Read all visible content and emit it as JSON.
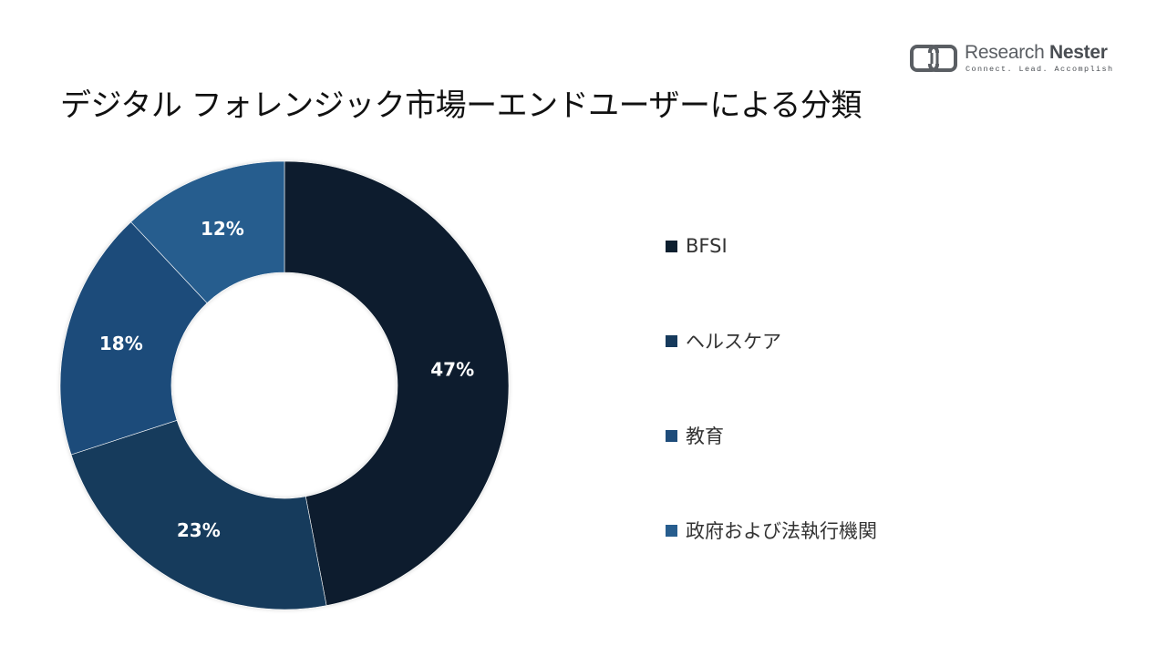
{
  "header": {
    "title": "デジタル フォレンジック市場ーエンドユーザーによる分類"
  },
  "logo": {
    "name_regular": "Research ",
    "name_bold": "Nester",
    "tagline": "Connect. Lead. Accomplish"
  },
  "chart_data": {
    "type": "pie",
    "variant": "donut",
    "categories": [
      "BFSI",
      "ヘルスケア",
      "教育",
      "政府および法執行機関"
    ],
    "values": [
      47,
      23,
      18,
      12
    ],
    "data_labels": [
      "47%",
      "23%",
      "18%",
      "12%"
    ],
    "colors": [
      "#0d1f2f",
      "#163a5c",
      "#1e4c7a",
      "#275d8e"
    ],
    "legend_placement": "right"
  }
}
